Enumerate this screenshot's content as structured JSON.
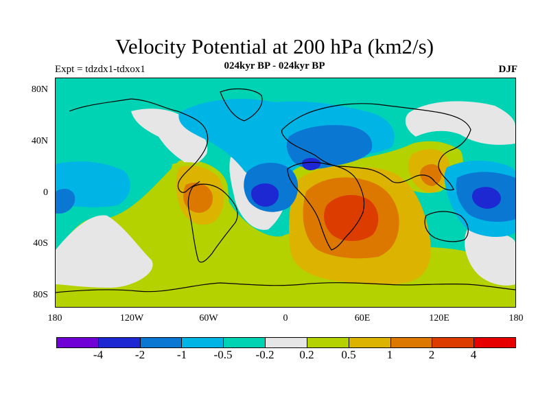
{
  "title": "Velocity Potential at 200 hPa (km2/s)",
  "subtitle": "024kyr BP - 024kyr BP",
  "experiment": "Expt = tdzdx1-tdxox1",
  "season": "DJF",
  "map": {
    "projection": "cylindrical-equidistant",
    "lon_range": [
      -180,
      180
    ],
    "lat_range": [
      -90,
      90
    ],
    "lat_ticks": [
      "80N",
      "40N",
      "0",
      "40S",
      "80S"
    ],
    "lon_ticks": [
      "180",
      "120W",
      "60W",
      "0",
      "60E",
      "120E",
      "180"
    ],
    "coastlines": true,
    "field": "velocity potential anomaly"
  },
  "colorbar": {
    "colors": [
      "#6f00d6",
      "#1e28d2",
      "#0a78d2",
      "#00b4e6",
      "#00d2b4",
      "#e6e6e6",
      "#b4d200",
      "#dcb400",
      "#dc7800",
      "#dc3c00",
      "#e60000"
    ],
    "labels": [
      "-4",
      "-2",
      "-1",
      "-0.5",
      "-0.2",
      "0.2",
      "0.5",
      "1",
      "2",
      "4"
    ]
  }
}
